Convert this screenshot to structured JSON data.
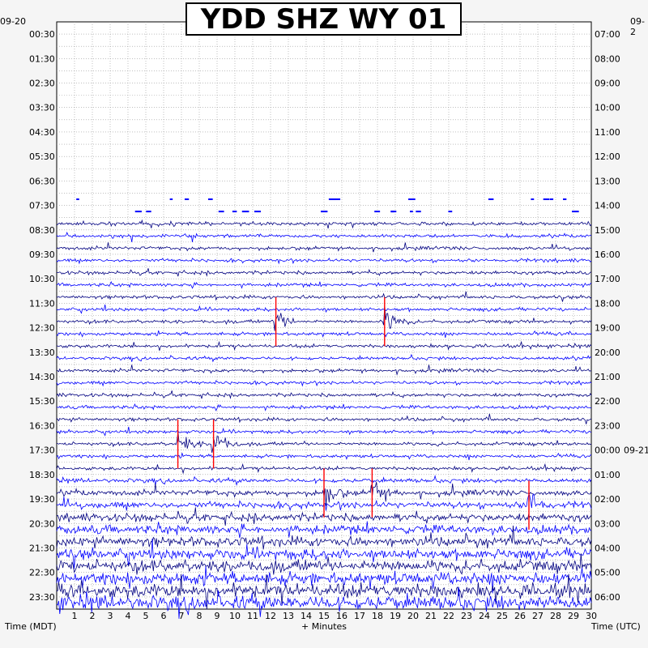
{
  "chart_data": {
    "type": "helicorder",
    "title": "YDD SHZ WY 01",
    "date_left": "09-20",
    "date_right": "09-2",
    "date_rollover": "09-21",
    "xlabel": "+ Minutes",
    "left_axis_label": "Time (MDT)",
    "right_axis_label": "Time (UTC)",
    "x_ticks": [
      "1",
      "2",
      "3",
      "4",
      "5",
      "6",
      "7",
      "8",
      "9",
      "10",
      "11",
      "12",
      "13",
      "14",
      "15",
      "16",
      "17",
      "18",
      "19",
      "20",
      "21",
      "22",
      "23",
      "24",
      "25",
      "26",
      "27",
      "28",
      "29",
      "30"
    ],
    "xlim": [
      0,
      30
    ],
    "left_times": [
      "00:30",
      "01:30",
      "02:30",
      "03:30",
      "04:30",
      "05:30",
      "06:30",
      "07:30",
      "08:30",
      "09:30",
      "10:30",
      "11:30",
      "12:30",
      "13:30",
      "14:30",
      "15:30",
      "16:30",
      "17:30",
      "18:30",
      "19:30",
      "20:30",
      "21:30",
      "22:30",
      "23:30"
    ],
    "right_times": [
      "07:00",
      "08:00",
      "09:00",
      "10:00",
      "11:00",
      "12:00",
      "13:00",
      "14:00",
      "15:00",
      "16:00",
      "17:00",
      "18:00",
      "19:00",
      "20:00",
      "21:00",
      "22:00",
      "23:00",
      "00:00",
      "01:00",
      "02:00",
      "03:00",
      "04:00",
      "05:00",
      "06:00"
    ],
    "rows_per_hour": 2,
    "total_rows": 48,
    "trace_colors": [
      "#000080",
      "#0000ff"
    ],
    "clip_color": "#ff0000",
    "data_start_row": 16,
    "grid": true,
    "events": [
      {
        "row": 24,
        "minute": 12.3
      },
      {
        "row": 24,
        "minute": 18.4
      },
      {
        "row": 34,
        "minute": 6.8
      },
      {
        "row": 34,
        "minute": 8.8
      },
      {
        "row": 38,
        "minute": 15.0
      },
      {
        "row": 38,
        "minute": 17.7
      },
      {
        "row": 39,
        "minute": 26.5
      }
    ]
  }
}
